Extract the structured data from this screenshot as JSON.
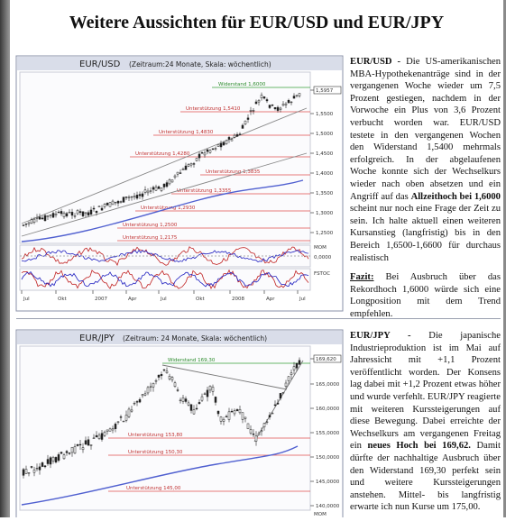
{
  "header": {
    "title": "Weitere Aussichten für EUR/USD und EUR/JPY"
  },
  "sections": [
    {
      "chart": {
        "title": "EUR/USD",
        "subtitle": "(Zeitraum:24 Monate, Skala: wöchentlich)",
        "levels": [
          "Widerstand 1,6000",
          "Unterstützung 1,5410",
          "Unterstützung 1,4830",
          "Unterstützung 1,4280",
          "Unterstützung 1,3835",
          "Unterstützung 1,3355",
          "Unterstützung 1,2930",
          "Unterstützung 1,2500",
          "Unterstützung 1,2175"
        ],
        "price_labels": [
          "1,5957",
          "1,5500",
          "1,5000",
          "1,4500",
          "1,4000",
          "1,3500",
          "1,3000",
          "1,2500"
        ],
        "indicators": [
          "MOM",
          "0,0000",
          "FSTOC"
        ],
        "x_labels": [
          "Jul",
          "Okt",
          "2007",
          "Apr",
          "Jul",
          "Okt",
          "2008",
          "Apr",
          "Jul"
        ]
      },
      "text": {
        "lead": "EUR/USD -",
        "body": "Die US-amerikanischen MBA-Hypothekenanträge sind in der vergangenen Woche wieder um 7,5 Prozent gestiegen, nachdem in der Vorwoche ein Plus von 3,6 Prozent verbucht worden war. EUR/USD testete in den vergangenen Wochen den Widerstand 1,5400 mehrmals erfolgreich. In der abgelaufenen Woche konnte sich der Wechselkurs wieder nach oben absetzen und ein Angriff auf das",
        "emphasis": "Allzeithoch bei 1,6000",
        "body_end": "scheint nur noch eine Frage der Zeit zu sein. Ich halte aktuell einen weiteren Kursanstieg (langfristig) bis in den Bereich 1,6500-1,6600 für durchaus realistisch",
        "conclusion_label": "Fazit:",
        "conclusion": "Bei Ausbruch über das Rekordhoch 1,6000 würde sich eine Longposition mit dem Trend empfehlen."
      }
    },
    {
      "chart": {
        "title": "EUR/JPY",
        "subtitle": "(Zeitraum: 24 Monate, Skala: wöchentlich)",
        "levels": [
          "Widerstand 169,30",
          "Unterstützung 153,80",
          "Unterstützung 150,30",
          "Unterstützung 145,00"
        ],
        "price_labels": [
          "169,620",
          "165,0000",
          "160,0000",
          "155,0000",
          "150,0000",
          "145,0000",
          "140,0000"
        ],
        "indicators": [
          "MOM"
        ]
      },
      "text": {
        "lead": "EUR/JPY -",
        "body": "Die japanische Industrieproduktion ist im Mai auf Jahressicht mit +1,1 Prozent veröffentlicht worden. Der Konsens lag dabei mit +1,2 Prozent etwas höher und wurde verfehlt. EUR/JPY reagierte mit weiteren Kurssteigerungen auf diese Bewegung. Dabei erreichte der Wechselkurs am vergangenen Freitag ein",
        "emphasis": "neues Hoch bei 169,62.",
        "body_end": "Damit dürfte der nachhaltige Ausbruch über den Widerstand 169,30 perfekt sein und weitere Kurssteigerungen anstehen. Mittel- bis langfristig erwarte ich nun Kurse um 175,00."
      }
    }
  ]
}
